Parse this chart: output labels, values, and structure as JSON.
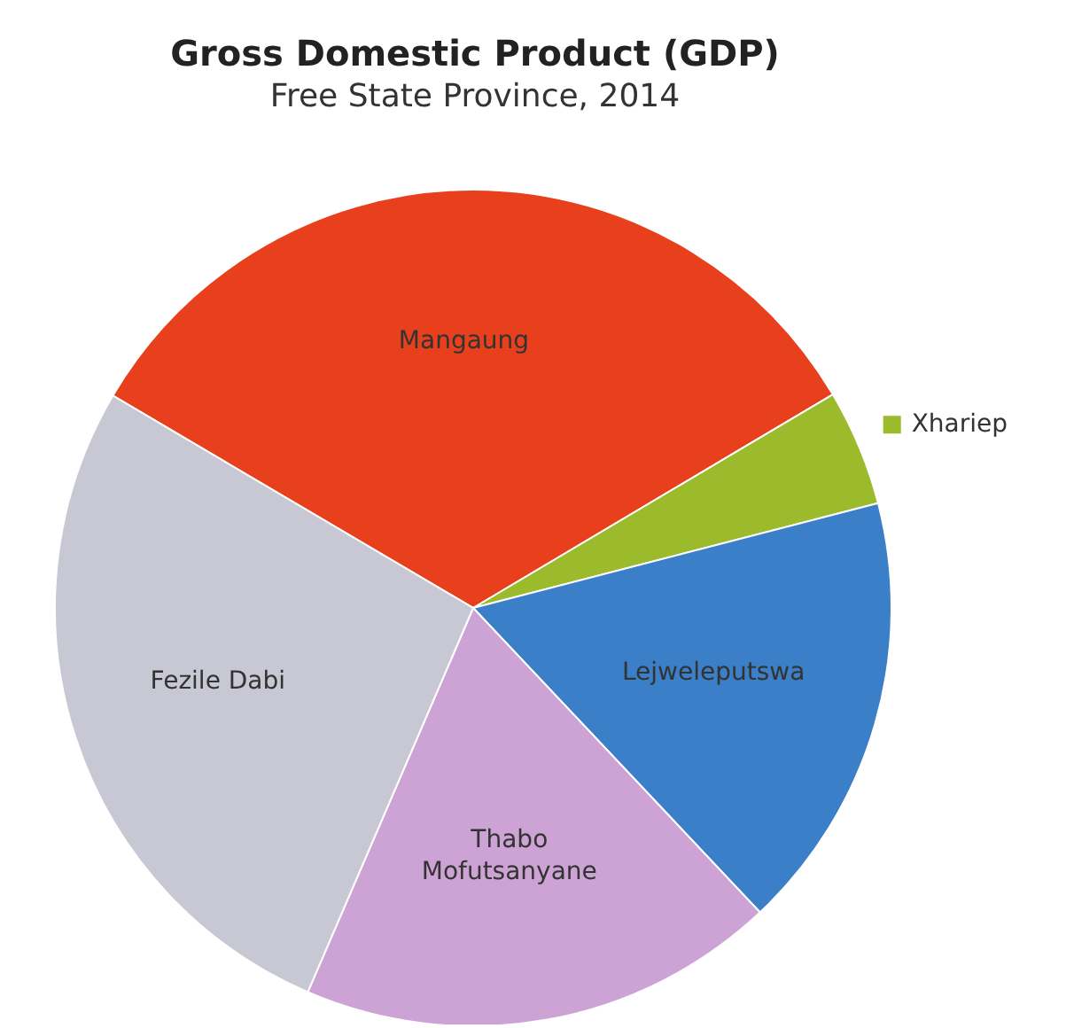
{
  "chart_data": {
    "type": "pie",
    "title": "Gross Domestic Product (GDP)",
    "subtitle": "Free State Province, 2014",
    "categories": [
      "Mangaung",
      "Xhariep",
      "Lejweleputswa",
      "Thabo Mofutsanyane",
      "Fezile Dabi"
    ],
    "values": [
      33,
      4.5,
      17,
      18.5,
      27
    ],
    "colors": [
      "#e8401c",
      "#9bbb2c",
      "#3a7fc8",
      "#cda3d6",
      "#c8c8d4"
    ]
  }
}
